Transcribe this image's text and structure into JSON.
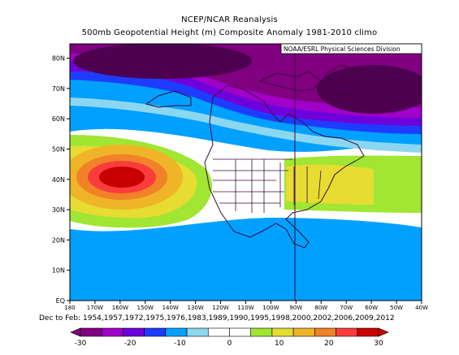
{
  "header": {
    "title": "NCEP/NCAR Reanalysis",
    "subtitle": "500mb Geopotential Height (m) Composite Anomaly 1981-2010 climo"
  },
  "map": {
    "credit": "NOAA/ESRL Physical Sciences Division",
    "lat_ticks": [
      "EQ",
      "10N",
      "20N",
      "30N",
      "40N",
      "50N",
      "60N",
      "70N",
      "80N"
    ],
    "lon_ticks": [
      "180",
      "170W",
      "160W",
      "150W",
      "140W",
      "130W",
      "120W",
      "110W",
      "100W",
      "90W",
      "80W",
      "70W",
      "60W",
      "50W",
      "40W"
    ],
    "domain": {
      "lon": [
        "180",
        "40W"
      ],
      "lat": [
        "EQ",
        "85N"
      ]
    }
  },
  "composite_dates": "Dec to Feb: 1954,1957,1972,1975,1976,1983,1989,1990,1995,1998,2000,2002,2006,2009,2012",
  "colorbar": {
    "ticks": [
      "-30",
      "-20",
      "-10",
      "0",
      "10",
      "20",
      "30"
    ],
    "colors": [
      "#800080",
      "#a000c8",
      "#6e00dc",
      "#1e3cff",
      "#00a0ff",
      "#8cd7f0",
      "#ffffff",
      "#ffffff",
      "#a0e632",
      "#e6dc32",
      "#f0b428",
      "#f08228",
      "#fa3c3c",
      "#c80000"
    ]
  }
}
